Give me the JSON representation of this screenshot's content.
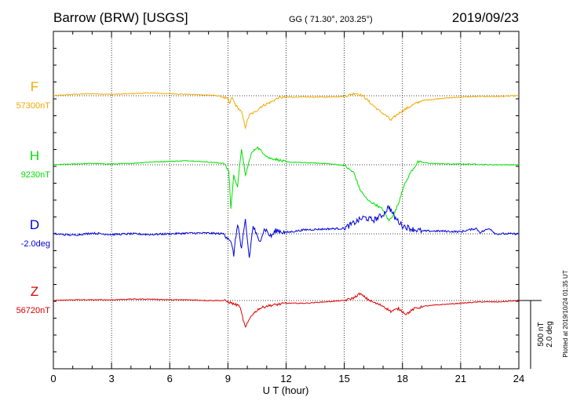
{
  "header": {
    "title": "Barrow (BRW)  [USGS]",
    "coords": "GG ( 71.30°, 203.25°)",
    "date": "2019/09/23"
  },
  "footer": {
    "plotted": "Plotted at 2019/10/24 01:35 UT"
  },
  "chart_data": {
    "type": "line",
    "xlabel": "U T (hour)",
    "xlim": [
      0,
      24
    ],
    "x_ticks": [
      "0",
      "3",
      "6",
      "9",
      "12",
      "15",
      "18",
      "21",
      "24"
    ],
    "scale_bar": {
      "nt_label": "500 nT",
      "deg_label": "2.0 deg",
      "nt_value": 500,
      "deg_value": 2.0
    },
    "series": [
      {
        "name": "F",
        "baseline_label": "57300nT",
        "color": "#f2a900",
        "points": [
          [
            0,
            0
          ],
          [
            1,
            10
          ],
          [
            2,
            15
          ],
          [
            3,
            10
          ],
          [
            4,
            15
          ],
          [
            5,
            20
          ],
          [
            6,
            15
          ],
          [
            7,
            10
          ],
          [
            8,
            5
          ],
          [
            8.5,
            0
          ],
          [
            9,
            -25
          ],
          [
            9.1,
            -60
          ],
          [
            9.2,
            -10
          ],
          [
            9.4,
            -70
          ],
          [
            9.7,
            -120
          ],
          [
            9.9,
            -230
          ],
          [
            10.1,
            -140
          ],
          [
            10.4,
            -120
          ],
          [
            10.7,
            -80
          ],
          [
            11,
            -60
          ],
          [
            11.3,
            -40
          ],
          [
            11.6,
            -15
          ],
          [
            12,
            -10
          ],
          [
            13,
            -10
          ],
          [
            14,
            -10
          ],
          [
            15,
            -5
          ],
          [
            15.6,
            20
          ],
          [
            16,
            -5
          ],
          [
            16.4,
            -60
          ],
          [
            16.8,
            -110
          ],
          [
            17.2,
            -150
          ],
          [
            17.4,
            -180
          ],
          [
            17.7,
            -140
          ],
          [
            18,
            -110
          ],
          [
            18.5,
            -70
          ],
          [
            19,
            -35
          ],
          [
            20,
            -20
          ],
          [
            21,
            -10
          ],
          [
            22,
            -5
          ],
          [
            23,
            -5
          ],
          [
            24,
            0
          ]
        ]
      },
      {
        "name": "H",
        "baseline_label": "9230nT",
        "color": "#00e000",
        "points": [
          [
            0,
            0
          ],
          [
            1,
            5
          ],
          [
            2,
            10
          ],
          [
            3,
            5
          ],
          [
            4,
            10
          ],
          [
            5,
            20
          ],
          [
            6,
            25
          ],
          [
            7,
            30
          ],
          [
            8,
            20
          ],
          [
            8.8,
            10
          ],
          [
            9.05,
            -50
          ],
          [
            9.15,
            -320
          ],
          [
            9.3,
            -80
          ],
          [
            9.5,
            -160
          ],
          [
            9.7,
            120
          ],
          [
            9.9,
            -80
          ],
          [
            10.2,
            80
          ],
          [
            10.5,
            130
          ],
          [
            10.8,
            90
          ],
          [
            11.1,
            50
          ],
          [
            11.5,
            40
          ],
          [
            12,
            20
          ],
          [
            13,
            15
          ],
          [
            14,
            10
          ],
          [
            15,
            -5
          ],
          [
            15.5,
            -60
          ],
          [
            15.8,
            -180
          ],
          [
            16.2,
            -260
          ],
          [
            16.6,
            -290
          ],
          [
            17,
            -330
          ],
          [
            17.3,
            -410
          ],
          [
            17.6,
            -350
          ],
          [
            17.8,
            -280
          ],
          [
            18,
            -180
          ],
          [
            18.4,
            -60
          ],
          [
            18.8,
            20
          ],
          [
            19.5,
            10
          ],
          [
            20.5,
            5
          ],
          [
            21.5,
            5
          ],
          [
            22.5,
            0
          ],
          [
            24,
            0
          ]
        ]
      },
      {
        "name": "D",
        "baseline_label": "-2.0deg",
        "color": "#0000dd",
        "points": [
          [
            0,
            0
          ],
          [
            1,
            -10
          ],
          [
            2,
            5
          ],
          [
            3,
            -5
          ],
          [
            4,
            0
          ],
          [
            5,
            -5
          ],
          [
            6,
            0
          ],
          [
            7,
            5
          ],
          [
            8,
            5
          ],
          [
            8.8,
            0
          ],
          [
            9.1,
            -40
          ],
          [
            9.3,
            -150
          ],
          [
            9.5,
            80
          ],
          [
            9.7,
            -120
          ],
          [
            9.9,
            100
          ],
          [
            10.1,
            -180
          ],
          [
            10.3,
            60
          ],
          [
            10.6,
            -60
          ],
          [
            10.9,
            40
          ],
          [
            11.2,
            -20
          ],
          [
            11.5,
            25
          ],
          [
            12,
            10
          ],
          [
            13,
            30
          ],
          [
            14,
            35
          ],
          [
            15,
            40
          ],
          [
            15.5,
            80
          ],
          [
            16,
            120
          ],
          [
            16.5,
            100
          ],
          [
            17,
            140
          ],
          [
            17.3,
            200
          ],
          [
            17.6,
            120
          ],
          [
            18,
            60
          ],
          [
            18.5,
            35
          ],
          [
            19,
            20
          ],
          [
            20,
            20
          ],
          [
            21,
            15
          ],
          [
            21.8,
            40
          ],
          [
            22,
            10
          ],
          [
            22.5,
            40
          ],
          [
            22.8,
            0
          ],
          [
            23.5,
            0
          ],
          [
            24,
            0
          ]
        ]
      },
      {
        "name": "Z",
        "baseline_label": "56720nT",
        "color": "#dd0000",
        "points": [
          [
            0,
            0
          ],
          [
            1,
            5
          ],
          [
            2,
            5
          ],
          [
            3,
            5
          ],
          [
            4,
            10
          ],
          [
            5,
            10
          ],
          [
            6,
            5
          ],
          [
            7,
            5
          ],
          [
            8,
            0
          ],
          [
            8.8,
            0
          ],
          [
            9.2,
            -20
          ],
          [
            9.6,
            -40
          ],
          [
            9.9,
            -200
          ],
          [
            10.2,
            -110
          ],
          [
            10.6,
            -60
          ],
          [
            11,
            -40
          ],
          [
            11.5,
            -30
          ],
          [
            12,
            -20
          ],
          [
            13,
            -20
          ],
          [
            14,
            -10
          ],
          [
            15,
            0
          ],
          [
            15.5,
            20
          ],
          [
            15.8,
            50
          ],
          [
            16.2,
            10
          ],
          [
            16.6,
            -20
          ],
          [
            17,
            -40
          ],
          [
            17.4,
            -80
          ],
          [
            17.8,
            -60
          ],
          [
            18.2,
            -100
          ],
          [
            18.6,
            -60
          ],
          [
            19.2,
            -40
          ],
          [
            20,
            -30
          ],
          [
            21,
            -20
          ],
          [
            22,
            -10
          ],
          [
            23,
            -10
          ],
          [
            24,
            0
          ]
        ]
      }
    ]
  }
}
